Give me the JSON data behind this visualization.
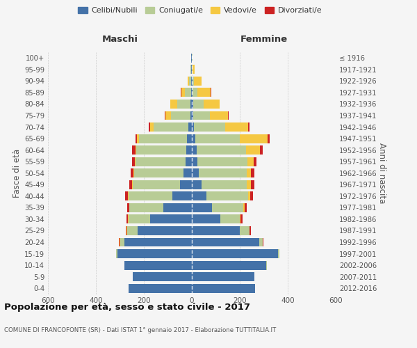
{
  "age_groups": [
    "0-4",
    "5-9",
    "10-14",
    "15-19",
    "20-24",
    "25-29",
    "30-34",
    "35-39",
    "40-44",
    "45-49",
    "50-54",
    "55-59",
    "60-64",
    "65-69",
    "70-74",
    "75-79",
    "80-84",
    "85-89",
    "90-94",
    "95-99",
    "100+"
  ],
  "birth_years": [
    "2012-2016",
    "2007-2011",
    "2002-2006",
    "1997-2001",
    "1992-1996",
    "1987-1991",
    "1982-1986",
    "1977-1981",
    "1972-1976",
    "1967-1971",
    "1962-1966",
    "1957-1961",
    "1952-1956",
    "1947-1951",
    "1942-1946",
    "1937-1941",
    "1932-1936",
    "1927-1931",
    "1922-1926",
    "1917-1921",
    "≤ 1916"
  ],
  "maschi": {
    "celibi": [
      265,
      245,
      280,
      310,
      280,
      225,
      175,
      120,
      80,
      50,
      35,
      25,
      22,
      20,
      15,
      6,
      5,
      4,
      3,
      2,
      2
    ],
    "coniugati": [
      0,
      1,
      2,
      5,
      20,
      45,
      90,
      140,
      185,
      195,
      205,
      210,
      210,
      200,
      145,
      80,
      55,
      25,
      8,
      3,
      1
    ],
    "vedovi": [
      0,
      0,
      0,
      0,
      2,
      2,
      2,
      2,
      3,
      3,
      3,
      3,
      4,
      8,
      15,
      25,
      30,
      15,
      5,
      1,
      0
    ],
    "divorziati": [
      0,
      0,
      0,
      0,
      2,
      3,
      5,
      8,
      10,
      12,
      12,
      10,
      12,
      8,
      5,
      2,
      1,
      1,
      0,
      0,
      0
    ]
  },
  "femmine": {
    "nubili": [
      265,
      260,
      310,
      360,
      280,
      200,
      120,
      85,
      60,
      40,
      28,
      22,
      20,
      15,
      10,
      5,
      5,
      3,
      2,
      1,
      1
    ],
    "coniugate": [
      0,
      1,
      2,
      5,
      15,
      40,
      80,
      130,
      175,
      190,
      200,
      210,
      205,
      185,
      130,
      70,
      45,
      20,
      8,
      2,
      1
    ],
    "vedove": [
      0,
      0,
      0,
      0,
      2,
      2,
      3,
      5,
      8,
      15,
      18,
      25,
      60,
      115,
      95,
      75,
      65,
      55,
      30,
      8,
      2
    ],
    "divorziate": [
      0,
      0,
      0,
      0,
      2,
      5,
      8,
      8,
      12,
      15,
      15,
      12,
      12,
      10,
      5,
      3,
      2,
      2,
      1,
      0,
      0
    ]
  },
  "colors": {
    "celibi": "#4472a8",
    "coniugati": "#b8cc96",
    "vedovi": "#f5c842",
    "divorziati": "#cc2222"
  },
  "xlim": 600,
  "title": "Popolazione per età, sesso e stato civile - 2017",
  "subtitle": "COMUNE DI FRANCOFONTE (SR) - Dati ISTAT 1° gennaio 2017 - Elaborazione TUTTITALIA.IT",
  "legend_labels": [
    "Celibi/Nubili",
    "Coniugati/e",
    "Vedovi/e",
    "Divorziati/e"
  ],
  "ylabel_left": "Fasce di età",
  "ylabel_right": "Anni di nascita",
  "maschi_label": "Maschi",
  "femmine_label": "Femmine",
  "bg_color": "#f5f5f5"
}
